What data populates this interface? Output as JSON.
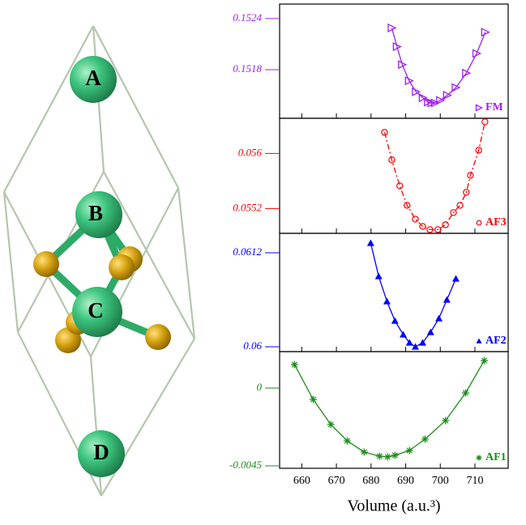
{
  "structure": {
    "atoms": [
      "A",
      "B",
      "C",
      "D"
    ]
  },
  "chart_data": [
    {
      "type": "line",
      "legend": "lower right",
      "xlim": [
        653.6,
        719.6
      ],
      "ylim": [
        0.15123,
        0.15257
      ],
      "yticks": [
        0.1518,
        0.1524
      ],
      "series": [
        {
          "name": "FM",
          "color": "#a020f0",
          "marker": "triangle-right",
          "line_style": "solid",
          "x": [
            686,
            687.5,
            689,
            691,
            693,
            695,
            696.5,
            697.5,
            698.5,
            700,
            702,
            704.5,
            707.5,
            710.5,
            713
          ],
          "values": [
            0.15229,
            0.15207,
            0.15186,
            0.15167,
            0.15154,
            0.15147,
            0.15142,
            0.15141,
            0.15141,
            0.15144,
            0.1515,
            0.15159,
            0.15176,
            0.15199,
            0.15224
          ]
        }
      ]
    },
    {
      "type": "line",
      "legend": "lower right",
      "xlim": [
        653.6,
        719.6
      ],
      "ylim": [
        0.05484,
        0.05651
      ],
      "yticks": [
        0.0552,
        0.056
      ],
      "series": [
        {
          "name": "AF3",
          "color": "#ff0000",
          "marker": "circle-open",
          "line_style": "dashdot",
          "x": [
            683.9,
            686,
            688.3,
            690.4,
            692.8,
            694.9,
            697,
            699.3,
            701.5,
            703.8,
            705.7,
            707.5,
            708.7,
            711.1,
            712.9
          ],
          "values": [
            0.056306,
            0.055906,
            0.055529,
            0.055247,
            0.055047,
            0.054941,
            0.054894,
            0.054894,
            0.054965,
            0.055141,
            0.055247,
            0.055435,
            0.055682,
            0.056047,
            0.056459
          ]
        }
      ]
    },
    {
      "type": "line",
      "legend": "lower right",
      "xlim": [
        653.6,
        719.6
      ],
      "ylim": [
        0.059938,
        0.061448
      ],
      "yticks": [
        0.06,
        0.0612
      ],
      "series": [
        {
          "name": "AF2",
          "color": "#0000ff",
          "marker": "triangle-up",
          "line_style": "solid",
          "x": [
            679.9,
            682.2,
            684.6,
            686.9,
            689.3,
            691.1,
            692.8,
            694.9,
            697.2,
            699.6,
            701.9,
            704.5
          ],
          "values": [
            0.061324,
            0.0609,
            0.060579,
            0.060331,
            0.060155,
            0.060052,
            0.06,
            0.060052,
            0.060186,
            0.060362,
            0.0606,
            0.060869
          ]
        }
      ]
    },
    {
      "type": "line",
      "legend": "lower right",
      "xlim": [
        653.6,
        719.6
      ],
      "ylim": [
        -0.00464,
        0.00211
      ],
      "yticks": [
        -0.0045,
        0
      ],
      "xticks": [
        660,
        670,
        680,
        690,
        700,
        710
      ],
      "x_label": "Volume (a.u.³)",
      "series": [
        {
          "name": "AF1",
          "color": "#1a8c1a",
          "marker": "star",
          "line_style": "solid",
          "x": [
            657.9,
            663.3,
            668.4,
            673.1,
            678,
            682.5,
            684.8,
            686.9,
            691.1,
            695.6,
            701.5,
            707.3,
            712.7
          ],
          "values": [
            0.00136,
            -0.00066,
            -0.00211,
            -0.00305,
            -0.0037,
            -0.00394,
            -0.00398,
            -0.00389,
            -0.00361,
            -0.00295,
            -0.00188,
            -0.00028,
            0.00159
          ]
        }
      ]
    }
  ]
}
